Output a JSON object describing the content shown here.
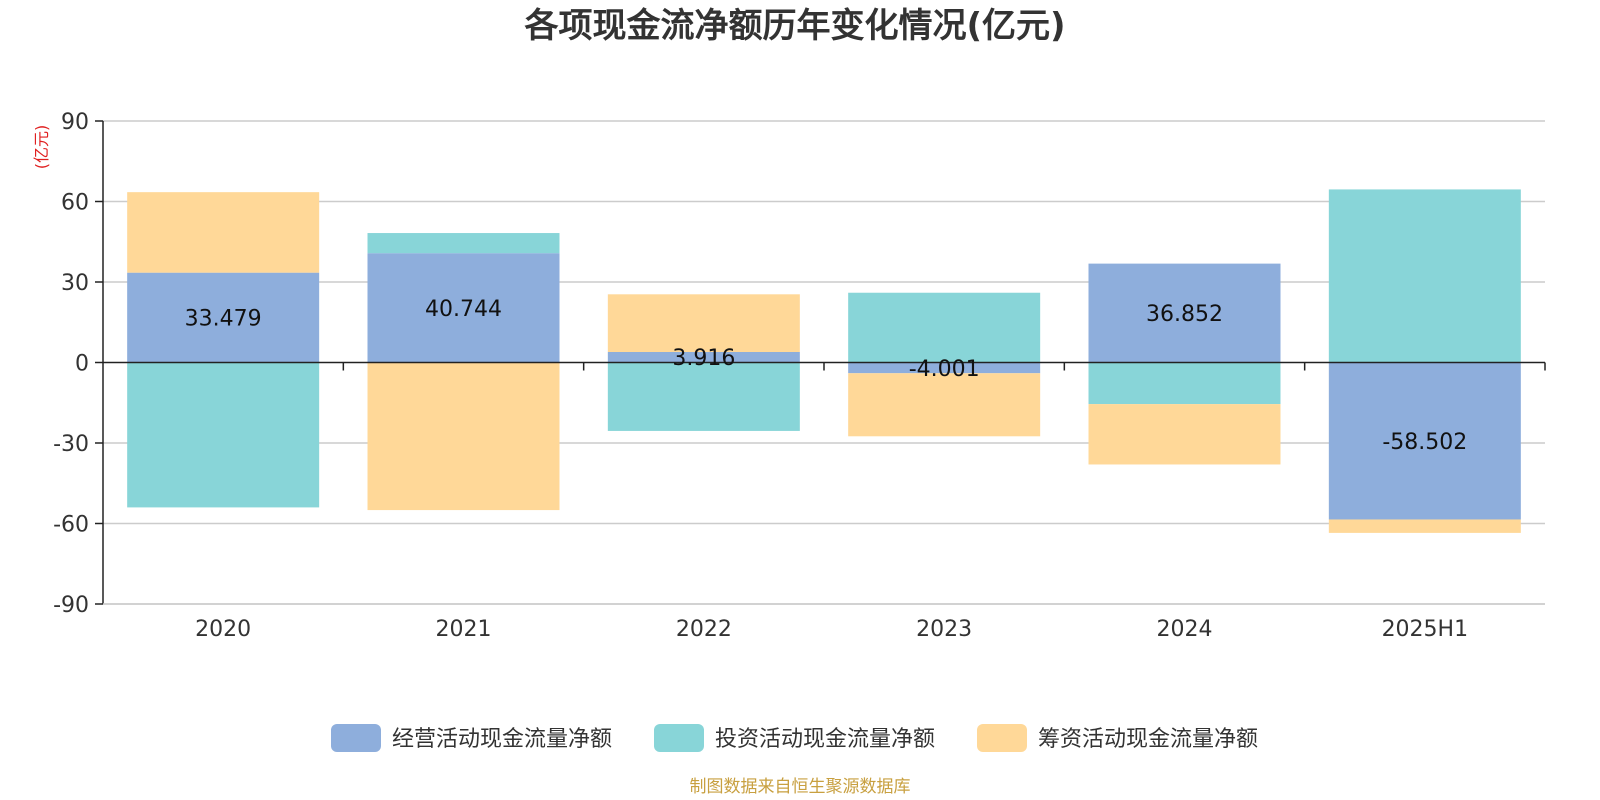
{
  "chart_data": {
    "type": "bar",
    "stacked": true,
    "title": "各项现金流净额历年变化情况(亿元)",
    "ylabel": "(亿元)",
    "ylim": [
      -90,
      90
    ],
    "yticks": [
      90,
      60,
      30,
      0,
      -30,
      -60,
      -90
    ],
    "categories": [
      "2020",
      "2021",
      "2022",
      "2023",
      "2024",
      "2025H1"
    ],
    "series": [
      {
        "name": "经营活动现金流量净额",
        "color": "#8eaedc",
        "values": [
          33.479,
          40.744,
          3.916,
          -4.001,
          36.852,
          -58.502
        ],
        "labels": [
          "33.479",
          "40.744",
          "3.916",
          "-4.001",
          "36.852",
          "-58.502"
        ]
      },
      {
        "name": "投资活动现金流量净额",
        "color": "#88d5d8",
        "values": [
          -54,
          7.5,
          -25.5,
          26,
          -15.5,
          64.5
        ]
      },
      {
        "name": "筹资活动现金流量净额",
        "color": "#ffd898",
        "values": [
          30,
          -55,
          21.5,
          -23.5,
          -22.5,
          -5
        ]
      }
    ],
    "legend_position": "bottom",
    "grid": true
  },
  "footer": {
    "source": "制图数据来自恒生聚源数据库"
  }
}
